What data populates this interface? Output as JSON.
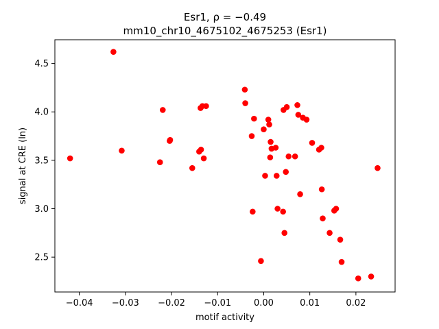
{
  "chart_data": {
    "type": "scatter",
    "title_line1": "Esr1, ρ = −0.49",
    "title_line2": "mm10_chr10_4675102_4675253 (Esr1)",
    "xlabel": "motif activity",
    "ylabel": "signal at CRE (ln)",
    "xlim": [
      -0.0453,
      0.0285
    ],
    "ylim": [
      2.14,
      4.745
    ],
    "xticks": [
      -0.04,
      -0.03,
      -0.02,
      -0.01,
      0.0,
      0.01,
      0.02
    ],
    "xtick_labels": [
      "−0.04",
      "−0.03",
      "−0.02",
      "−0.01",
      "0.00",
      "0.01",
      "0.02"
    ],
    "yticks": [
      2.5,
      3.0,
      3.5,
      4.0,
      4.5
    ],
    "ytick_labels": [
      "2.5",
      "3.0",
      "3.5",
      "4.0",
      "4.5"
    ],
    "grid": false,
    "marker_color": "#ff0000",
    "points": [
      {
        "x": -0.042,
        "y": 3.52
      },
      {
        "x": -0.0326,
        "y": 4.62
      },
      {
        "x": -0.0308,
        "y": 3.6
      },
      {
        "x": -0.0225,
        "y": 3.48
      },
      {
        "x": -0.0219,
        "y": 4.02
      },
      {
        "x": -0.0204,
        "y": 3.7
      },
      {
        "x": -0.0203,
        "y": 3.71
      },
      {
        "x": -0.0155,
        "y": 3.42
      },
      {
        "x": -0.014,
        "y": 3.59
      },
      {
        "x": -0.0136,
        "y": 3.61
      },
      {
        "x": -0.0137,
        "y": 4.04
      },
      {
        "x": -0.0133,
        "y": 4.06
      },
      {
        "x": -0.013,
        "y": 3.52
      },
      {
        "x": -0.0125,
        "y": 4.06
      },
      {
        "x": -0.0041,
        "y": 4.23
      },
      {
        "x": -0.004,
        "y": 4.09
      },
      {
        "x": -0.0026,
        "y": 3.75
      },
      {
        "x": -0.0024,
        "y": 2.97
      },
      {
        "x": -0.0021,
        "y": 3.93
      },
      {
        "x": -0.0006,
        "y": 2.46
      },
      {
        "x": 0.0,
        "y": 3.82
      },
      {
        "x": 0.0003,
        "y": 3.34
      },
      {
        "x": 0.001,
        "y": 3.92
      },
      {
        "x": 0.0012,
        "y": 3.87
      },
      {
        "x": 0.0014,
        "y": 3.53
      },
      {
        "x": 0.0015,
        "y": 3.69
      },
      {
        "x": 0.0017,
        "y": 3.62
      },
      {
        "x": 0.0026,
        "y": 3.63
      },
      {
        "x": 0.0028,
        "y": 3.34
      },
      {
        "x": 0.003,
        "y": 3.0
      },
      {
        "x": 0.0042,
        "y": 2.97
      },
      {
        "x": 0.0043,
        "y": 4.02
      },
      {
        "x": 0.0045,
        "y": 2.75
      },
      {
        "x": 0.0048,
        "y": 3.38
      },
      {
        "x": 0.005,
        "y": 4.05
      },
      {
        "x": 0.0054,
        "y": 3.54
      },
      {
        "x": 0.0068,
        "y": 3.54
      },
      {
        "x": 0.0073,
        "y": 4.07
      },
      {
        "x": 0.0075,
        "y": 3.97
      },
      {
        "x": 0.0079,
        "y": 3.15
      },
      {
        "x": 0.0085,
        "y": 3.94
      },
      {
        "x": 0.0093,
        "y": 3.92
      },
      {
        "x": 0.0105,
        "y": 3.68
      },
      {
        "x": 0.012,
        "y": 3.61
      },
      {
        "x": 0.0125,
        "y": 3.63
      },
      {
        "x": 0.0126,
        "y": 3.2
      },
      {
        "x": 0.0128,
        "y": 2.9
      },
      {
        "x": 0.0143,
        "y": 2.75
      },
      {
        "x": 0.0153,
        "y": 2.98
      },
      {
        "x": 0.0157,
        "y": 3.0
      },
      {
        "x": 0.0166,
        "y": 2.68
      },
      {
        "x": 0.0169,
        "y": 2.45
      },
      {
        "x": 0.0205,
        "y": 2.28
      },
      {
        "x": 0.0233,
        "y": 2.3
      },
      {
        "x": 0.0247,
        "y": 3.42
      }
    ]
  }
}
